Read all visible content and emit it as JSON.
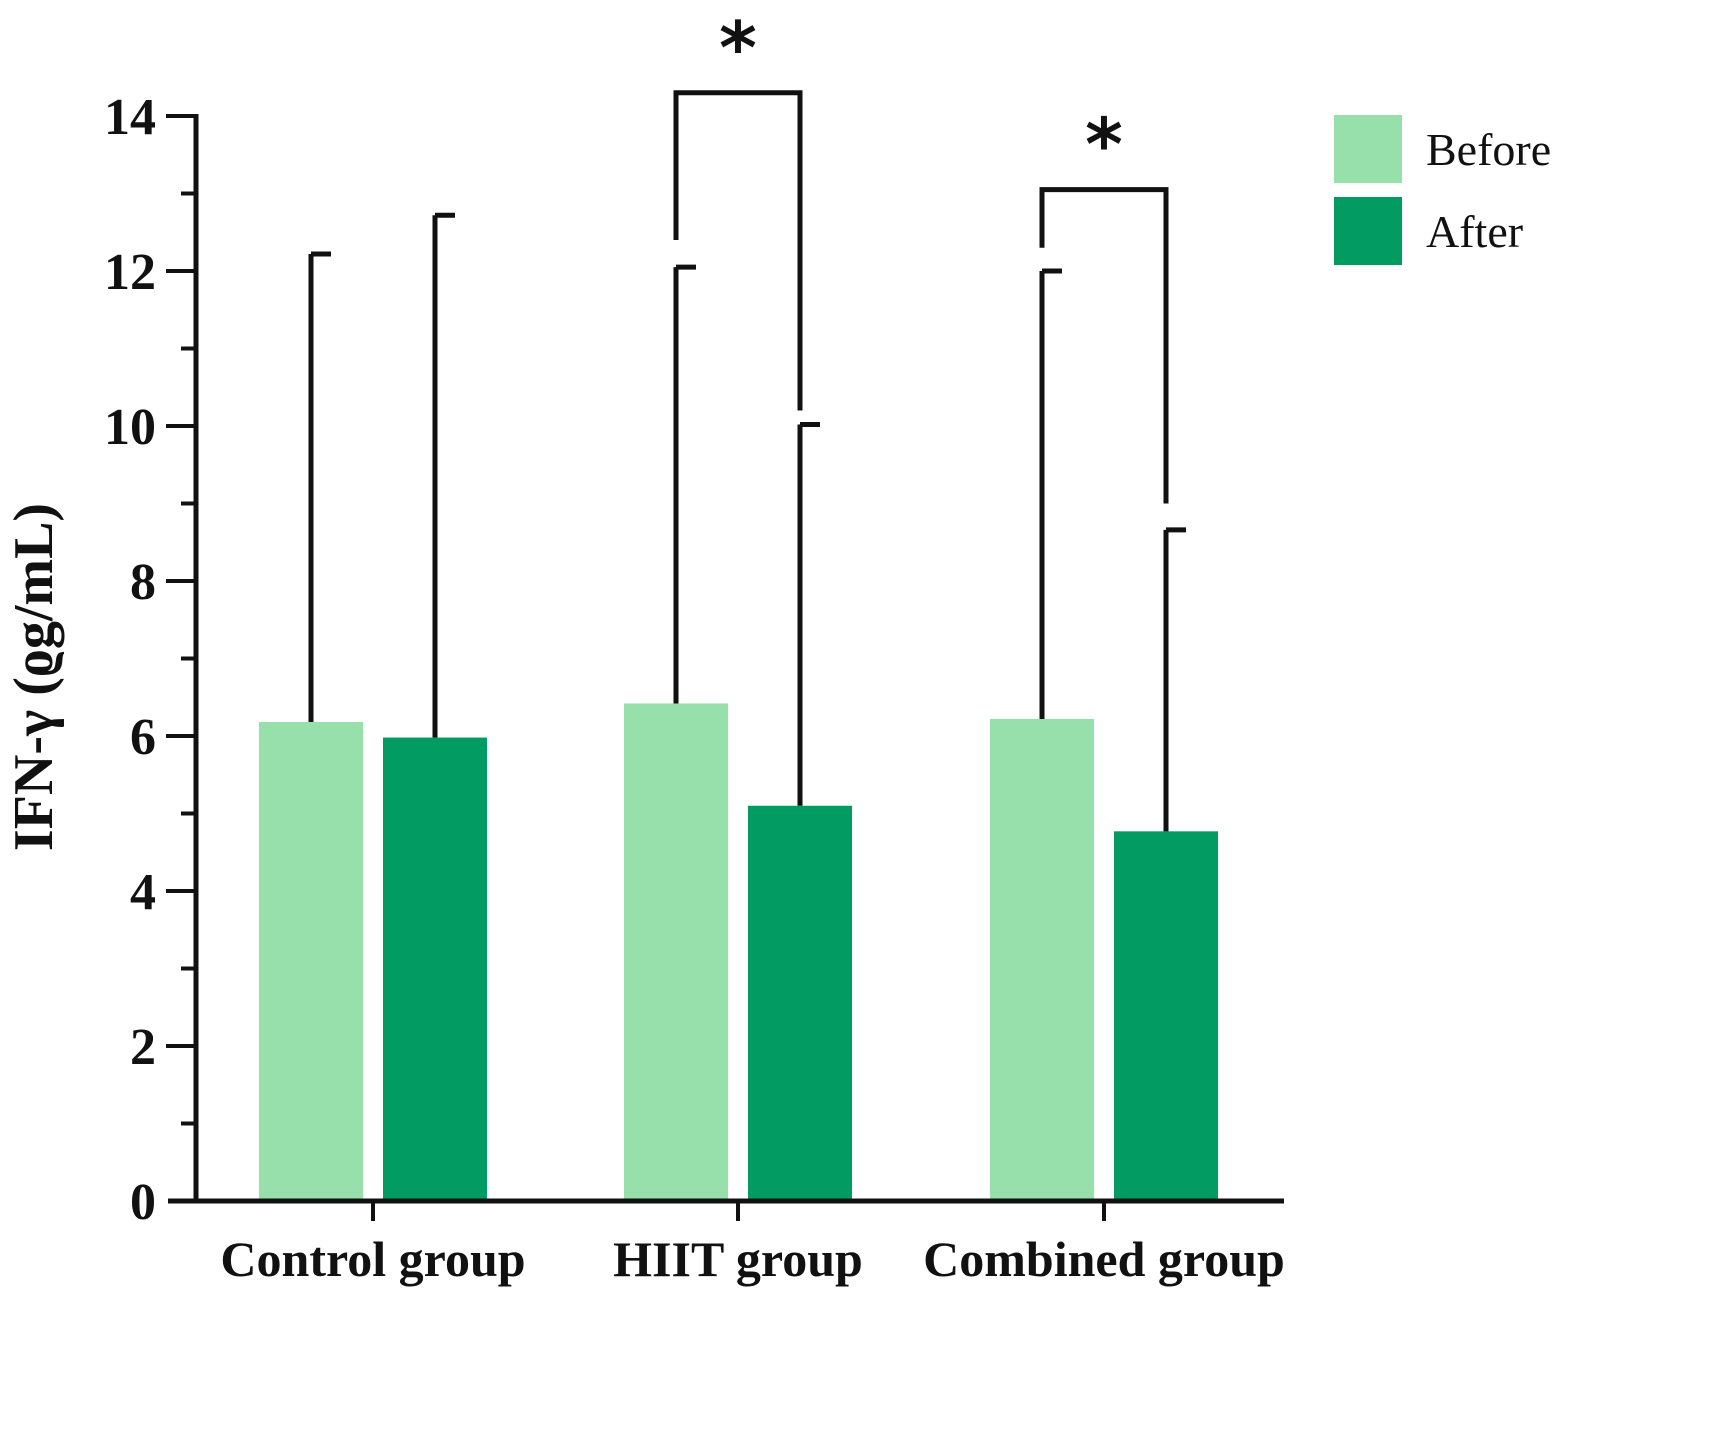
{
  "chart_data": {
    "type": "bar",
    "title": "",
    "xlabel": "",
    "ylabel": "IFN-γ (ϱg/mL)",
    "ylim": [
      0,
      14
    ],
    "yticks": [
      0,
      2,
      4,
      6,
      8,
      10,
      12,
      14
    ],
    "categories": [
      "Control group",
      "HIIT group",
      "Combined group"
    ],
    "series": [
      {
        "name": "Before",
        "color": "#97dfab",
        "values": [
          6.18,
          6.42,
          6.22
        ],
        "error": [
          6.04,
          5.63,
          5.78
        ]
      },
      {
        "name": "After",
        "color": "#029b61",
        "values": [
          5.98,
          5.1,
          4.77
        ],
        "error": [
          6.74,
          4.92,
          3.89
        ]
      }
    ],
    "significance": [
      {
        "category": "HIIT group",
        "label": "*",
        "bracket_level": 14.3,
        "left_tip": 12.4,
        "right_tip": 10.2
      },
      {
        "category": "Combined group",
        "label": "*",
        "bracket_level": 13.05,
        "left_tip": 12.3,
        "right_tip": 9.0
      }
    ],
    "legend": {
      "position": "top-right",
      "entries": [
        "Before",
        "After"
      ]
    }
  }
}
